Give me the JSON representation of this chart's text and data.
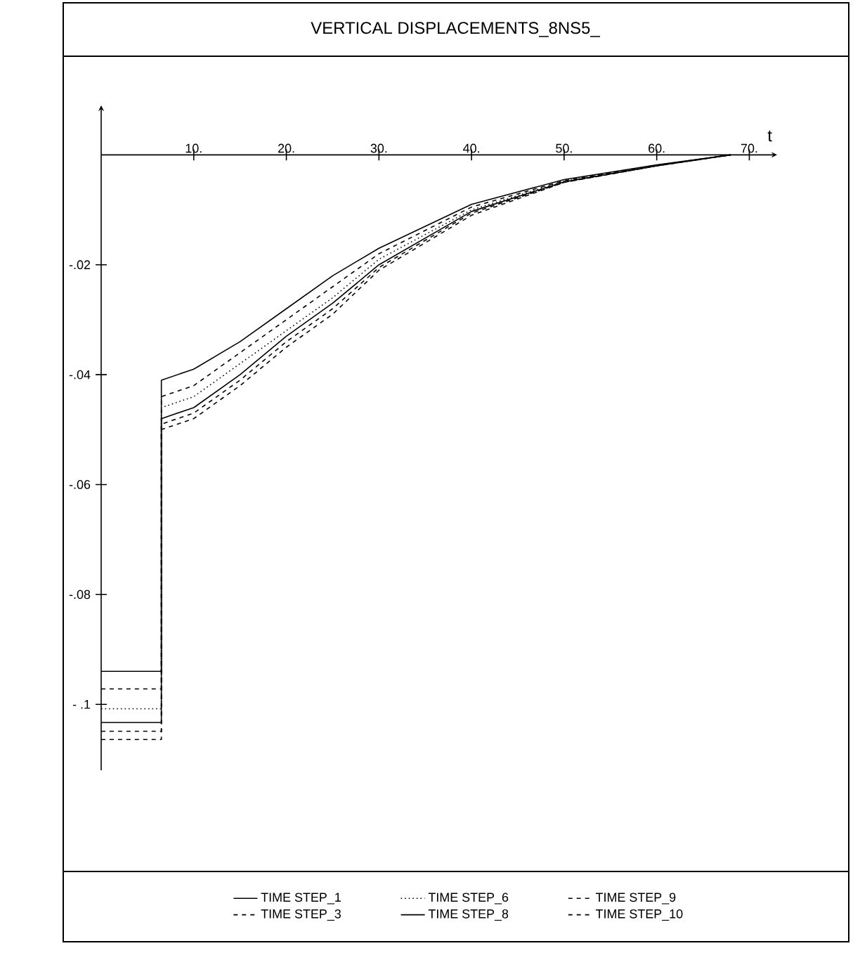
{
  "chart_data": {
    "type": "line",
    "title": "VERTICAL  DISPLACEMENTS_8NS5_",
    "xlabel": "t",
    "x": [
      0,
      6.5,
      6.5,
      10,
      15,
      20,
      25,
      30,
      40,
      50,
      60,
      68
    ],
    "series": [
      {
        "name": "TIME  STEP_1",
        "color": "#000000",
        "line_style": "solid",
        "values": [
          -0.094,
          -0.094,
          -0.041,
          -0.039,
          -0.034,
          -0.028,
          -0.022,
          -0.017,
          -0.009,
          -0.0045,
          -0.0018,
          0
        ]
      },
      {
        "name": "TIME STEP_3",
        "color": "#000000",
        "line_style": "dashed",
        "values": [
          -0.0972,
          -0.0972,
          -0.044,
          -0.042,
          -0.036,
          -0.03,
          -0.024,
          -0.018,
          -0.0095,
          -0.0047,
          -0.0019,
          0
        ]
      },
      {
        "name": "TIME  STEP_6",
        "color": "#000000",
        "line_style": "dotted",
        "values": [
          -0.1008,
          -0.1008,
          -0.046,
          -0.044,
          -0.038,
          -0.032,
          -0.026,
          -0.019,
          -0.01,
          -0.0048,
          -0.0019,
          0
        ]
      },
      {
        "name": "TIME  STEP_8",
        "color": "#000000",
        "line_style": "solid",
        "values": [
          -0.1033,
          -0.1033,
          -0.048,
          -0.046,
          -0.04,
          -0.033,
          -0.027,
          -0.02,
          -0.0103,
          -0.0049,
          -0.002,
          0
        ]
      },
      {
        "name": "TIME   STEP_9",
        "color": "#000000",
        "line_style": "dashed",
        "values": [
          -0.1049,
          -0.1049,
          -0.049,
          -0.047,
          -0.041,
          -0.034,
          -0.028,
          -0.0205,
          -0.0106,
          -0.005,
          -0.002,
          0
        ]
      },
      {
        "name": "TIME   STEP_10",
        "color": "#000000",
        "line_style": "dashed",
        "values": [
          -0.1064,
          -0.1064,
          -0.05,
          -0.048,
          -0.042,
          -0.035,
          -0.029,
          -0.021,
          -0.011,
          -0.005,
          -0.002,
          0
        ]
      }
    ],
    "xlim": [
      0,
      73
    ],
    "ylim": [
      -0.112,
      0.009
    ],
    "xticks": [
      {
        "value": 10,
        "label": "10."
      },
      {
        "value": 20,
        "label": "20."
      },
      {
        "value": 30,
        "label": "30."
      },
      {
        "value": 40,
        "label": "40."
      },
      {
        "value": 50,
        "label": "50."
      },
      {
        "value": 60,
        "label": "60."
      },
      {
        "value": 70,
        "label": "70."
      }
    ],
    "yticks": [
      {
        "value": -0.02,
        "label": "-.02"
      },
      {
        "value": -0.04,
        "label": "-.04"
      },
      {
        "value": -0.06,
        "label": "-.06"
      },
      {
        "value": -0.08,
        "label": "-.08"
      },
      {
        "value": -0.1,
        "label": "- .1"
      }
    ],
    "legend": "bottom",
    "grid": false
  }
}
